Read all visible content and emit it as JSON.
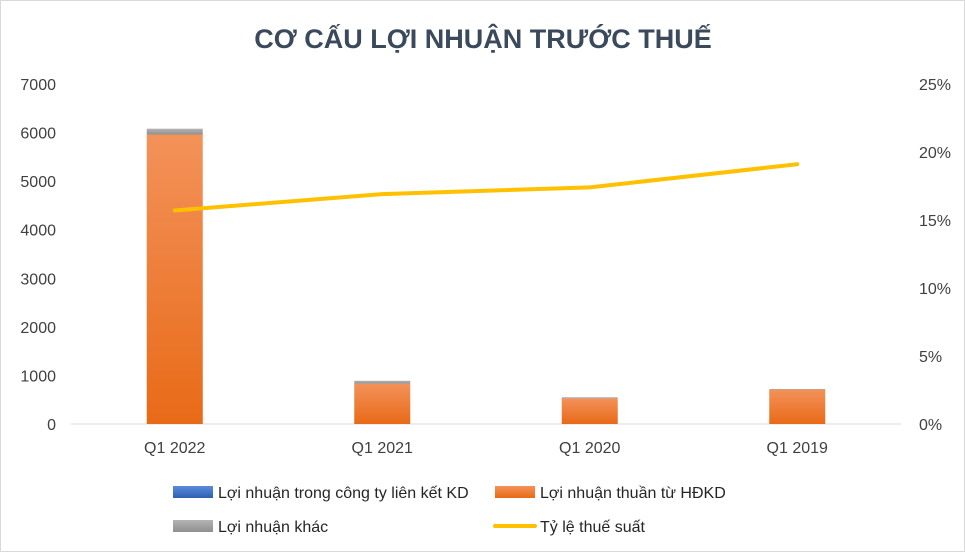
{
  "chart_data": {
    "type": "bar",
    "title": "CƠ CẤU LỢI NHUẬN TRƯỚC THUẾ",
    "categories": [
      "Q1 2022",
      "Q1 2021",
      "Q1 2020",
      "Q1 2019"
    ],
    "series": [
      {
        "name": "Lợi nhuận trong công ty liên kết KD",
        "type": "bar",
        "stack": "profit",
        "color": "#4472c4",
        "values": [
          0,
          0,
          0,
          0
        ]
      },
      {
        "name": "Lợi nhuận thuần từ HĐKD",
        "type": "bar",
        "stack": "profit",
        "color": "#ed7d31",
        "values": [
          5960,
          830,
          530,
          710
        ]
      },
      {
        "name": "Lợi nhuận khác",
        "type": "bar",
        "stack": "profit",
        "color": "#a5a5a5",
        "values": [
          120,
          60,
          20,
          10
        ]
      },
      {
        "name": "Tỷ lệ thuế suất",
        "type": "line",
        "axis": "secondary",
        "color": "#ffc000",
        "values": [
          0.157,
          0.169,
          0.174,
          0.191
        ]
      }
    ],
    "y_axis": {
      "min": 0,
      "max": 7000,
      "ticks": [
        "0",
        "1000",
        "2000",
        "3000",
        "4000",
        "5000",
        "6000",
        "7000"
      ]
    },
    "y2_axis": {
      "min": 0,
      "max": 0.25,
      "ticks": [
        "0%",
        "5%",
        "10%",
        "15%",
        "20%",
        "25%"
      ]
    },
    "grid": false,
    "legend_position": "bottom"
  }
}
